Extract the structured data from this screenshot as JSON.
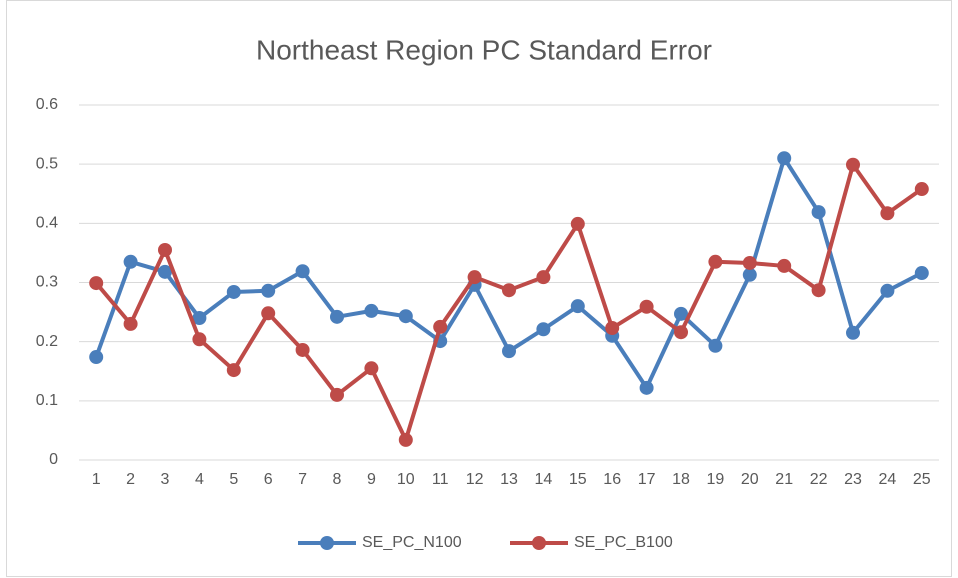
{
  "chart_data": {
    "type": "line",
    "title": "Northeast Region PC Standard Error",
    "categories": [
      1,
      2,
      3,
      4,
      5,
      6,
      7,
      8,
      9,
      10,
      11,
      12,
      13,
      14,
      15,
      16,
      17,
      18,
      19,
      20,
      21,
      22,
      23,
      24,
      25
    ],
    "series": [
      {
        "name": "SE_PC_N100",
        "color": "#4a7ebb",
        "values": [
          0.174,
          0.335,
          0.318,
          0.24,
          0.284,
          0.286,
          0.319,
          0.242,
          0.252,
          0.243,
          0.201,
          0.296,
          0.184,
          0.221,
          0.26,
          0.21,
          0.122,
          0.247,
          0.193,
          0.313,
          0.51,
          0.419,
          0.215,
          0.286,
          0.316
        ]
      },
      {
        "name": "SE_PC_B100",
        "color": "#be4b48",
        "values": [
          0.299,
          0.23,
          0.355,
          0.204,
          0.152,
          0.248,
          0.186,
          0.11,
          0.155,
          0.034,
          0.225,
          0.309,
          0.287,
          0.309,
          0.399,
          0.223,
          0.259,
          0.216,
          0.335,
          0.333,
          0.328,
          0.287,
          0.499,
          0.417,
          0.458
        ]
      }
    ],
    "ylim": [
      0,
      0.6
    ],
    "yticks": [
      0,
      0.1,
      0.2,
      0.3,
      0.4,
      0.5,
      0.6
    ],
    "grid": true,
    "legend": "bottom"
  }
}
